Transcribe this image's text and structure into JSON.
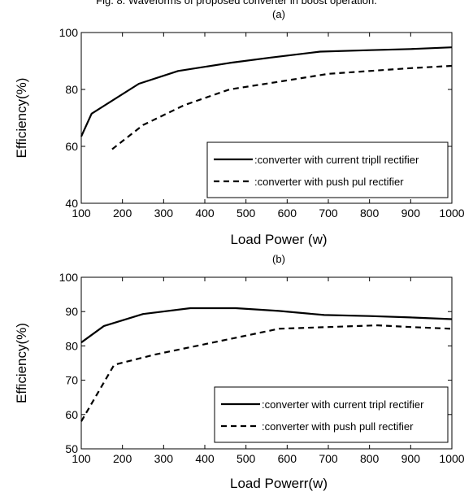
{
  "caption_top": "Fig. 8. Waveforms of proposed converter in boost operation.",
  "chart_data": [
    {
      "type": "line",
      "panel_label": "(a)",
      "title": "",
      "xlabel": "Load Power (w)",
      "ylabel": "Efficiency(%)",
      "xlim": [
        100,
        1000
      ],
      "ylim": [
        40,
        100
      ],
      "xticks": [
        100,
        200,
        300,
        400,
        500,
        600,
        700,
        800,
        900,
        1000
      ],
      "yticks": [
        40,
        60,
        80,
        100
      ],
      "grid": false,
      "legend_position": "bottom-right",
      "series": [
        {
          "name": ":converter with current tripll rectifier",
          "style": "solid",
          "x": [
            100,
            125,
            240,
            335,
            460,
            560,
            680,
            800,
            900,
            1000
          ],
          "y": [
            63.5,
            71.5,
            82,
            86.5,
            89.3,
            91.2,
            93.3,
            93.8,
            94.2,
            94.8
          ]
        },
        {
          "name": ":converter with push pul rectifier",
          "style": "dashed",
          "x": [
            175,
            250,
            350,
            460,
            570,
            700,
            800,
            900,
            1000
          ],
          "y": [
            59,
            67.5,
            74.5,
            80,
            82.5,
            85.5,
            86.5,
            87.5,
            88.3
          ]
        }
      ]
    },
    {
      "type": "line",
      "panel_label": "(b)",
      "title": "",
      "xlabel": "Load Powerr(w)",
      "ylabel": "Efficiency(%)",
      "xlim": [
        100,
        1000
      ],
      "ylim": [
        50,
        100
      ],
      "xticks": [
        100,
        200,
        300,
        400,
        500,
        600,
        700,
        800,
        900,
        1000
      ],
      "yticks": [
        50,
        60,
        70,
        80,
        90,
        100
      ],
      "grid": false,
      "legend_position": "bottom-right",
      "series": [
        {
          "name": ":converter with current tripl rectifier",
          "style": "solid",
          "x": [
            100,
            155,
            250,
            365,
            475,
            580,
            690,
            800,
            900,
            1000
          ],
          "y": [
            81,
            85.8,
            89.3,
            91,
            91,
            90.2,
            89,
            88.7,
            88.3,
            87.8
          ]
        },
        {
          "name": ":converter with push pull rectifier",
          "style": "dashed",
          "x": [
            100,
            180,
            280,
            380,
            480,
            580,
            700,
            820,
            900,
            1000
          ],
          "y": [
            58,
            74.5,
            77.5,
            80,
            82.5,
            85,
            85.5,
            86,
            85.5,
            85
          ]
        }
      ]
    }
  ]
}
